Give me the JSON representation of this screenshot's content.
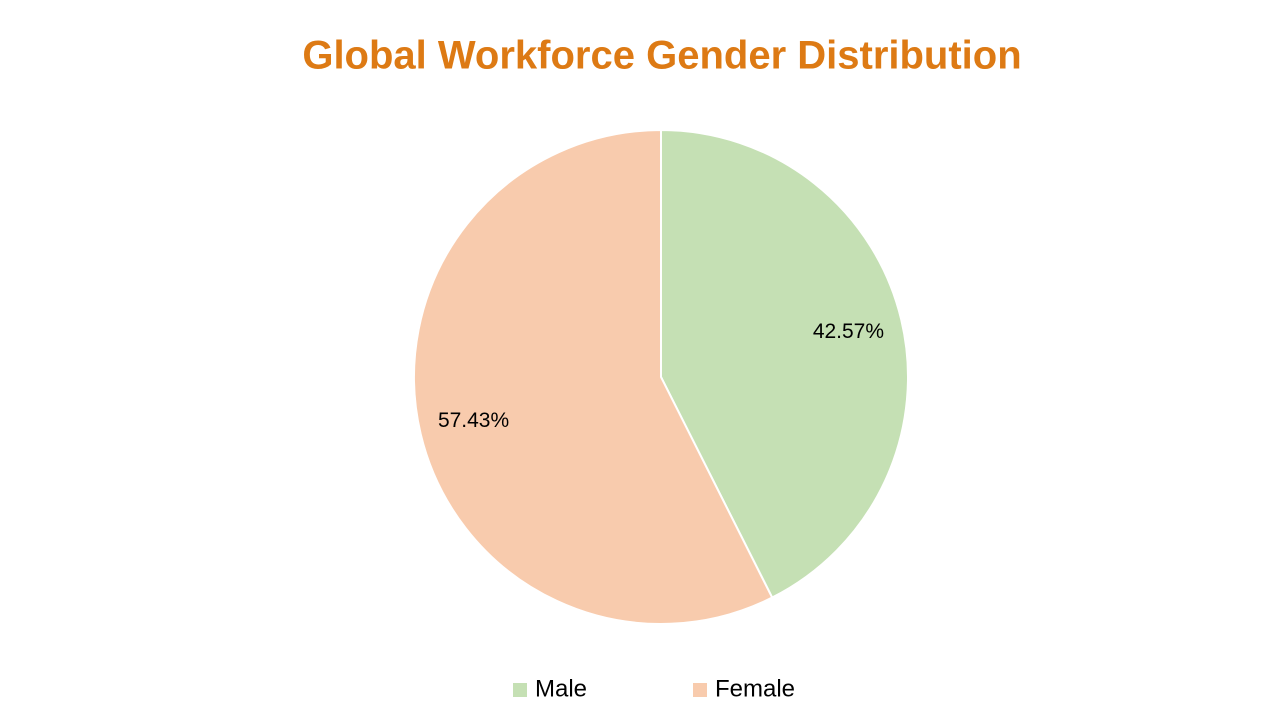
{
  "chart_data": {
    "type": "pie",
    "title": "Global Workforce Gender Distribution",
    "categories": [
      "Male",
      "Female"
    ],
    "values": [
      42.57,
      57.43
    ],
    "value_labels": [
      "42.57%",
      "57.43%"
    ],
    "colors": [
      "#c5e0b4",
      "#f8cbad"
    ],
    "legend": "bottom"
  }
}
